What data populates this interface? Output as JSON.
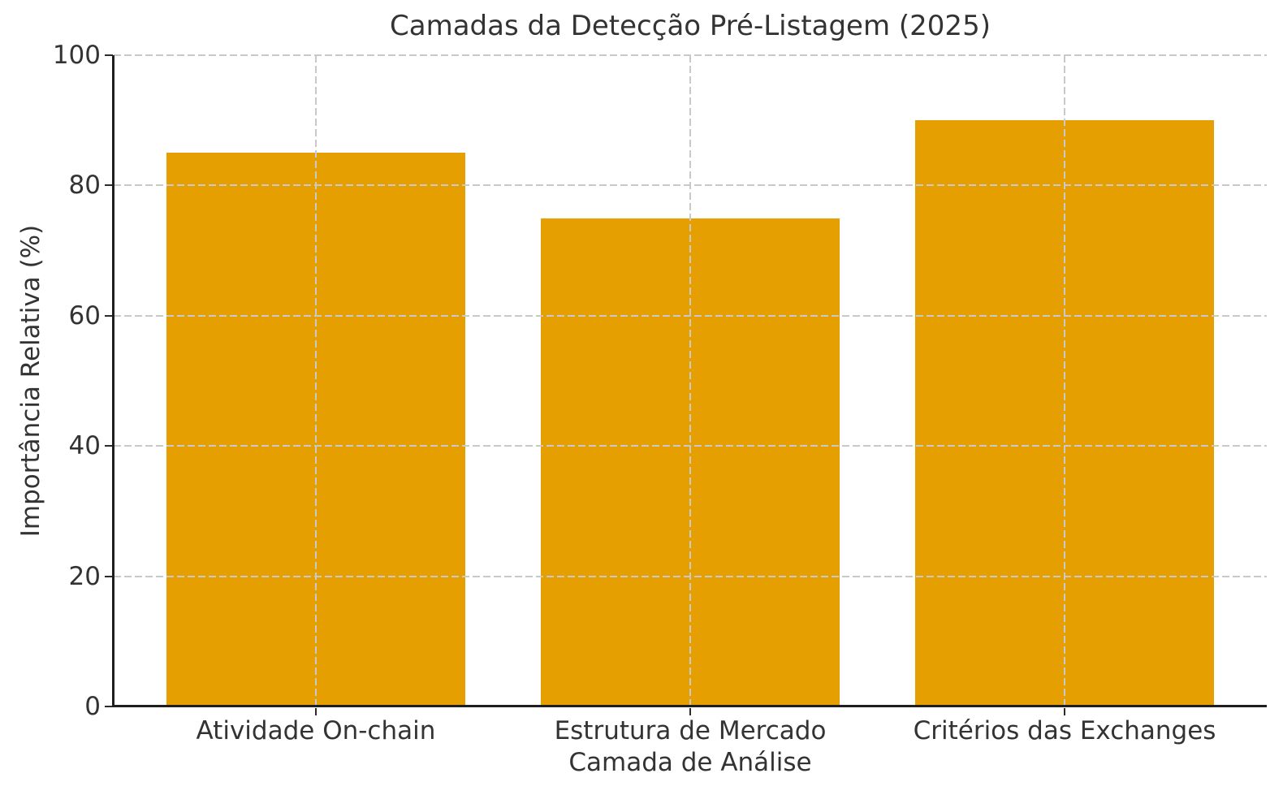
{
  "figure": {
    "background": "#ffffff"
  },
  "chart_data": {
    "type": "bar",
    "title": "Camadas da Detecção Pré-Listagem (2025)",
    "xlabel": "Camada de Análise",
    "ylabel": "Importância Relativa (%)",
    "categories": [
      "Atividade On-chain",
      "Estrutura de Mercado",
      "Critérios das Exchanges"
    ],
    "values": [
      85,
      75,
      90
    ],
    "ylim": [
      0,
      100
    ],
    "yticks": [
      0,
      20,
      40,
      60,
      80,
      100
    ],
    "bar_width_fraction": 0.8,
    "x_margin_fraction": 0.05,
    "grid": {
      "visible": true,
      "style": "dashed",
      "axes": "both",
      "above_bars": true
    },
    "legend_position": "none",
    "colors": {
      "bar": "#E69F00",
      "grid": "#c9c9c9",
      "spine": "#1f1f1f",
      "text": "#333333"
    }
  }
}
